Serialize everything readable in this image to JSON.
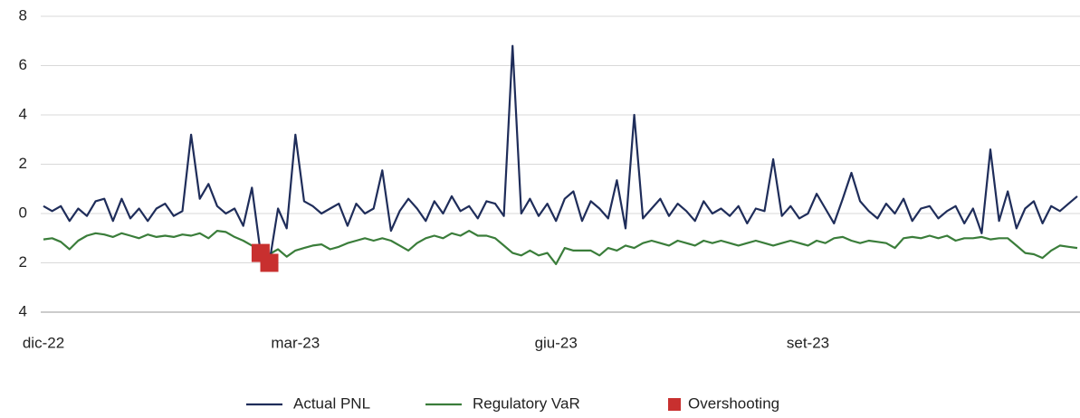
{
  "chart_data": {
    "type": "line",
    "categories": [
      "dic-22",
      null,
      null,
      null,
      null,
      null,
      null,
      null,
      null,
      null,
      null,
      null,
      null,
      null,
      null,
      null,
      null,
      null,
      null,
      null,
      null,
      null,
      null,
      null,
      null,
      null,
      null,
      null,
      null,
      "mar-23",
      null,
      null,
      null,
      null,
      null,
      null,
      null,
      null,
      null,
      null,
      null,
      null,
      null,
      null,
      null,
      null,
      null,
      null,
      null,
      null,
      null,
      null,
      null,
      null,
      null,
      null,
      null,
      null,
      null,
      "giu-23",
      null,
      null,
      null,
      null,
      null,
      null,
      null,
      null,
      null,
      null,
      null,
      null,
      null,
      null,
      null,
      null,
      null,
      null,
      null,
      null,
      null,
      null,
      null,
      null,
      null,
      null,
      null,
      null,
      "set-23",
      null,
      null,
      null,
      null,
      null,
      null,
      null,
      null,
      null,
      null,
      null,
      null,
      null,
      null,
      null,
      null,
      null,
      null,
      null,
      null,
      null,
      null,
      null,
      null,
      null,
      null,
      null,
      null,
      null,
      null,
      null
    ],
    "series": [
      {
        "name": "Actual PNL",
        "color": "#1f2d5a",
        "values": [
          0.3,
          0.1,
          0.3,
          -0.3,
          0.2,
          -0.1,
          0.5,
          0.6,
          -0.3,
          0.6,
          -0.2,
          0.2,
          -0.3,
          0.2,
          0.4,
          -0.1,
          0.1,
          3.2,
          0.6,
          1.2,
          0.3,
          0.0,
          0.2,
          -0.5,
          1.05,
          -1.6,
          -2.0,
          0.2,
          -0.6,
          3.2,
          0.5,
          0.3,
          0.0,
          0.2,
          0.4,
          -0.5,
          0.4,
          0.0,
          0.2,
          1.75,
          -0.7,
          0.1,
          0.6,
          0.2,
          -0.3,
          0.5,
          0.0,
          0.7,
          0.1,
          0.3,
          -0.2,
          0.5,
          0.4,
          -0.1,
          6.8,
          0.0,
          0.6,
          -0.1,
          0.4,
          -0.3,
          0.6,
          0.9,
          -0.3,
          0.5,
          0.2,
          -0.2,
          1.35,
          -0.6,
          4.0,
          -0.2,
          0.2,
          0.6,
          -0.1,
          0.4,
          0.1,
          -0.3,
          0.5,
          0.0,
          0.2,
          -0.1,
          0.3,
          -0.4,
          0.2,
          0.1,
          2.2,
          -0.1,
          0.3,
          -0.2,
          0.0,
          0.8,
          0.2,
          -0.4,
          0.6,
          1.65,
          0.5,
          0.1,
          -0.2,
          0.4,
          0.0,
          0.6,
          -0.3,
          0.2,
          0.3,
          -0.2,
          0.1,
          0.3,
          -0.4,
          0.2,
          -0.8,
          2.6,
          -0.3,
          0.9,
          -0.6,
          0.2,
          0.5,
          -0.4,
          0.3,
          0.1,
          0.4,
          0.7
        ]
      },
      {
        "name": "Regulatory VaR",
        "color": "#3a7d3a",
        "values": [
          -1.05,
          -1.0,
          -1.15,
          -1.45,
          -1.1,
          -0.9,
          -0.8,
          -0.85,
          -0.95,
          -0.8,
          -0.9,
          -1.0,
          -0.85,
          -0.95,
          -0.9,
          -0.95,
          -0.85,
          -0.9,
          -0.8,
          -1.0,
          -0.7,
          -0.75,
          -0.95,
          -1.1,
          -1.3,
          -1.5,
          -1.65,
          -1.45,
          -1.75,
          -1.5,
          -1.4,
          -1.3,
          -1.25,
          -1.45,
          -1.35,
          -1.2,
          -1.1,
          -1.0,
          -1.1,
          -1.0,
          -1.1,
          -1.3,
          -1.5,
          -1.2,
          -1.0,
          -0.9,
          -1.0,
          -0.8,
          -0.9,
          -0.7,
          -0.9,
          -0.9,
          -1.0,
          -1.3,
          -1.6,
          -1.7,
          -1.5,
          -1.7,
          -1.6,
          -2.05,
          -1.4,
          -1.5,
          -1.5,
          -1.5,
          -1.7,
          -1.4,
          -1.5,
          -1.3,
          -1.4,
          -1.2,
          -1.1,
          -1.2,
          -1.3,
          -1.1,
          -1.2,
          -1.3,
          -1.1,
          -1.2,
          -1.1,
          -1.2,
          -1.3,
          -1.2,
          -1.1,
          -1.2,
          -1.3,
          -1.2,
          -1.1,
          -1.2,
          -1.3,
          -1.1,
          -1.2,
          -1.0,
          -0.95,
          -1.1,
          -1.2,
          -1.1,
          -1.15,
          -1.2,
          -1.4,
          -1.0,
          -0.95,
          -1.0,
          -0.9,
          -1.0,
          -0.9,
          -1.1,
          -1.0,
          -1.0,
          -0.95,
          -1.05,
          -1.0,
          -1.0,
          -1.3,
          -1.6,
          -1.65,
          -1.8,
          -1.5,
          -1.3,
          -1.35,
          -1.4
        ]
      },
      {
        "name": "Overshooting",
        "color": "#c8302f",
        "marker": "square",
        "values": [
          null,
          null,
          null,
          null,
          null,
          null,
          null,
          null,
          null,
          null,
          null,
          null,
          null,
          null,
          null,
          null,
          null,
          null,
          null,
          null,
          null,
          null,
          null,
          null,
          null,
          -1.6,
          -2.0,
          null,
          null,
          null,
          null,
          null,
          null,
          null,
          null,
          null,
          null,
          null,
          null,
          null,
          null,
          null,
          null,
          null,
          null,
          null,
          null,
          null,
          null,
          null,
          null,
          null,
          null,
          null,
          null,
          null,
          null,
          null,
          null,
          null,
          null,
          null,
          null,
          null,
          null,
          null,
          null,
          null,
          null,
          null,
          null,
          null,
          null,
          null,
          null,
          null,
          null,
          null,
          null,
          null,
          null,
          null,
          null,
          null,
          null,
          null,
          null,
          null,
          null,
          null,
          null,
          null,
          null,
          null,
          null,
          null,
          null,
          null,
          null,
          null,
          null,
          null,
          null,
          null,
          null,
          null,
          null,
          null,
          null,
          null,
          null,
          null,
          null,
          null,
          null,
          null,
          null,
          null,
          null,
          null
        ]
      }
    ],
    "ylim": [
      -4,
      8
    ],
    "yticks": [
      {
        "value": -4,
        "label": "4"
      },
      {
        "value": -2,
        "label": "2"
      },
      0,
      2,
      4,
      6,
      8
    ],
    "grid": true,
    "legend": "bottom"
  }
}
